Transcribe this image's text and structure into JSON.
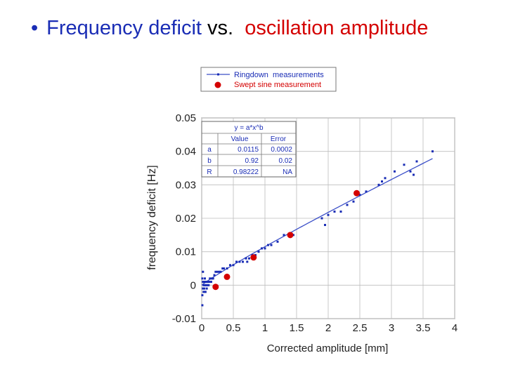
{
  "slide_title": {
    "bullet": "•",
    "part1": "Frequency deficit",
    "part2": " vs.  ",
    "part3": "oscillation amplitude"
  },
  "colors": {
    "blue": "#1a2db5",
    "red": "#d40000",
    "fit_line": "#3b4fc8",
    "grid": "#bdbdbd"
  },
  "chart_data": {
    "type": "scatter",
    "title": "",
    "xlabel": "Corrected amplitude [mm]",
    "ylabel": "frequency deficit [Hz]",
    "xlim": [
      0,
      4
    ],
    "ylim": [
      -0.01,
      0.05
    ],
    "x_ticks": [
      "0",
      "0.5",
      "1",
      "1.5",
      "2",
      "2.5",
      "3",
      "3.5",
      "4"
    ],
    "x_tick_values": [
      0,
      0.5,
      1,
      1.5,
      2,
      2.5,
      3,
      3.5,
      4
    ],
    "y_ticks": [
      "-0.01",
      "0",
      "0.01",
      "0.02",
      "0.03",
      "0.04",
      "0.05"
    ],
    "y_tick_values": [
      -0.01,
      0,
      0.01,
      0.02,
      0.03,
      0.04,
      0.05
    ],
    "grid": true,
    "legend": {
      "placement": "top",
      "entries": [
        {
          "label": "Ringdown  measurements",
          "marker": "line-dot",
          "color": "#1a2db5"
        },
        {
          "label": "Swept sine measurement",
          "marker": "circle",
          "color": "#d40000"
        }
      ]
    },
    "fit": {
      "equation": "y = a*x^b",
      "headers": [
        "",
        "Value",
        "Error"
      ],
      "rows": [
        [
          "a",
          "0.0115",
          "0.0002"
        ],
        [
          "b",
          "0.92",
          "0.02"
        ],
        [
          "R",
          "0.98222",
          "NA"
        ]
      ],
      "a": 0.0115,
      "b": 0.92,
      "x_range": [
        0,
        3.65
      ]
    },
    "series": [
      {
        "name": "Ringdown  measurements",
        "marker": "square-small",
        "points": [
          [
            0.01,
            -0.006
          ],
          [
            0.01,
            -0.003
          ],
          [
            0.02,
            -0.001
          ],
          [
            0.02,
            0.001
          ],
          [
            0.01,
            0.002
          ],
          [
            0.02,
            0.004
          ],
          [
            0.03,
            -0.002
          ],
          [
            0.03,
            0.0
          ],
          [
            0.04,
            -0.001
          ],
          [
            0.04,
            0.001
          ],
          [
            0.05,
            0.0
          ],
          [
            0.05,
            0.002
          ],
          [
            0.06,
            -0.002
          ],
          [
            0.06,
            0.001
          ],
          [
            0.07,
            0.0
          ],
          [
            0.08,
            0.001
          ],
          [
            0.08,
            -0.001
          ],
          [
            0.09,
            0.0
          ],
          [
            0.1,
            0.001
          ],
          [
            0.11,
            0.0
          ],
          [
            0.12,
            0.001
          ],
          [
            0.13,
            0.002
          ],
          [
            0.15,
            0.001
          ],
          [
            0.16,
            0.002
          ],
          [
            0.18,
            0.002
          ],
          [
            0.2,
            0.003
          ],
          [
            0.22,
            0.004
          ],
          [
            0.25,
            0.004
          ],
          [
            0.28,
            0.004
          ],
          [
            0.3,
            0.004
          ],
          [
            0.33,
            0.005
          ],
          [
            0.35,
            0.005
          ],
          [
            0.4,
            0.005
          ],
          [
            0.45,
            0.006
          ],
          [
            0.5,
            0.006
          ],
          [
            0.55,
            0.007
          ],
          [
            0.6,
            0.007
          ],
          [
            0.65,
            0.007
          ],
          [
            0.7,
            0.008
          ],
          [
            0.72,
            0.007
          ],
          [
            0.75,
            0.008
          ],
          [
            0.8,
            0.009
          ],
          [
            0.85,
            0.009
          ],
          [
            0.9,
            0.01
          ],
          [
            0.95,
            0.011
          ],
          [
            1.0,
            0.011
          ],
          [
            1.05,
            0.012
          ],
          [
            1.1,
            0.012
          ],
          [
            1.2,
            0.013
          ],
          [
            1.3,
            0.015
          ],
          [
            1.45,
            0.015
          ],
          [
            1.9,
            0.02
          ],
          [
            1.95,
            0.018
          ],
          [
            2.0,
            0.021
          ],
          [
            2.1,
            0.022
          ],
          [
            2.2,
            0.022
          ],
          [
            2.3,
            0.024
          ],
          [
            2.4,
            0.025
          ],
          [
            2.5,
            0.027
          ],
          [
            2.6,
            0.028
          ],
          [
            2.8,
            0.03
          ],
          [
            2.85,
            0.031
          ],
          [
            2.9,
            0.032
          ],
          [
            3.05,
            0.034
          ],
          [
            3.2,
            0.036
          ],
          [
            3.3,
            0.034
          ],
          [
            3.35,
            0.033
          ],
          [
            3.4,
            0.037
          ],
          [
            3.65,
            0.04
          ]
        ]
      },
      {
        "name": "Swept sine measurement",
        "marker": "circle",
        "points": [
          [
            0.22,
            -0.0005
          ],
          [
            0.4,
            0.0025
          ],
          [
            0.82,
            0.0083
          ],
          [
            1.4,
            0.015
          ],
          [
            2.45,
            0.0275
          ]
        ]
      }
    ]
  }
}
